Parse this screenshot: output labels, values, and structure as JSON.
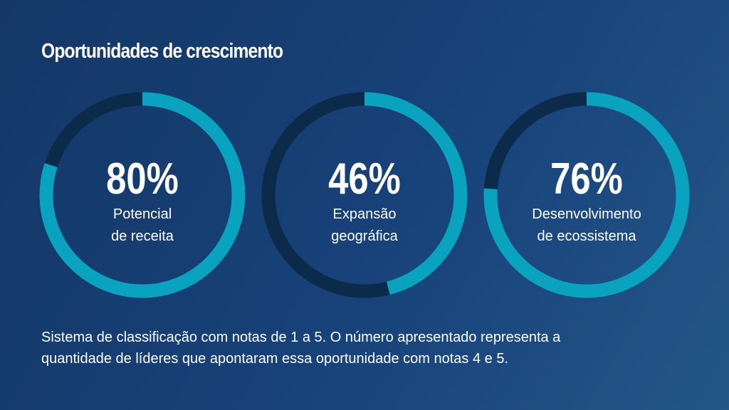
{
  "title": "Oportunidades de crescimento",
  "note": "Sistema de classificação com notas de 1 a 5. O número apresentado representa a\nquantidade de líderes que apontaram essa oportunidade com notas 4 e 5.",
  "chart_data": [
    {
      "type": "donut",
      "categories": [
        "Potencial\nde receita"
      ],
      "values": [
        80
      ],
      "value_labels": [
        "80%"
      ],
      "ylim": [
        0,
        100
      ],
      "color": "#0aa3bf",
      "track_color": "#0c2b4b"
    },
    {
      "type": "donut",
      "categories": [
        "Expansão\ngeográfica"
      ],
      "values": [
        46
      ],
      "value_labels": [
        "46%"
      ],
      "ylim": [
        0,
        100
      ],
      "color": "#0aa3bf",
      "track_color": "#0c2b4b"
    },
    {
      "type": "donut",
      "categories": [
        "Desenvolvimento\nde ecossistema"
      ],
      "values": [
        76
      ],
      "value_labels": [
        "76%"
      ],
      "ylim": [
        0,
        100
      ],
      "color": "#0aa3bf",
      "track_color": "#0c2b4b"
    }
  ]
}
